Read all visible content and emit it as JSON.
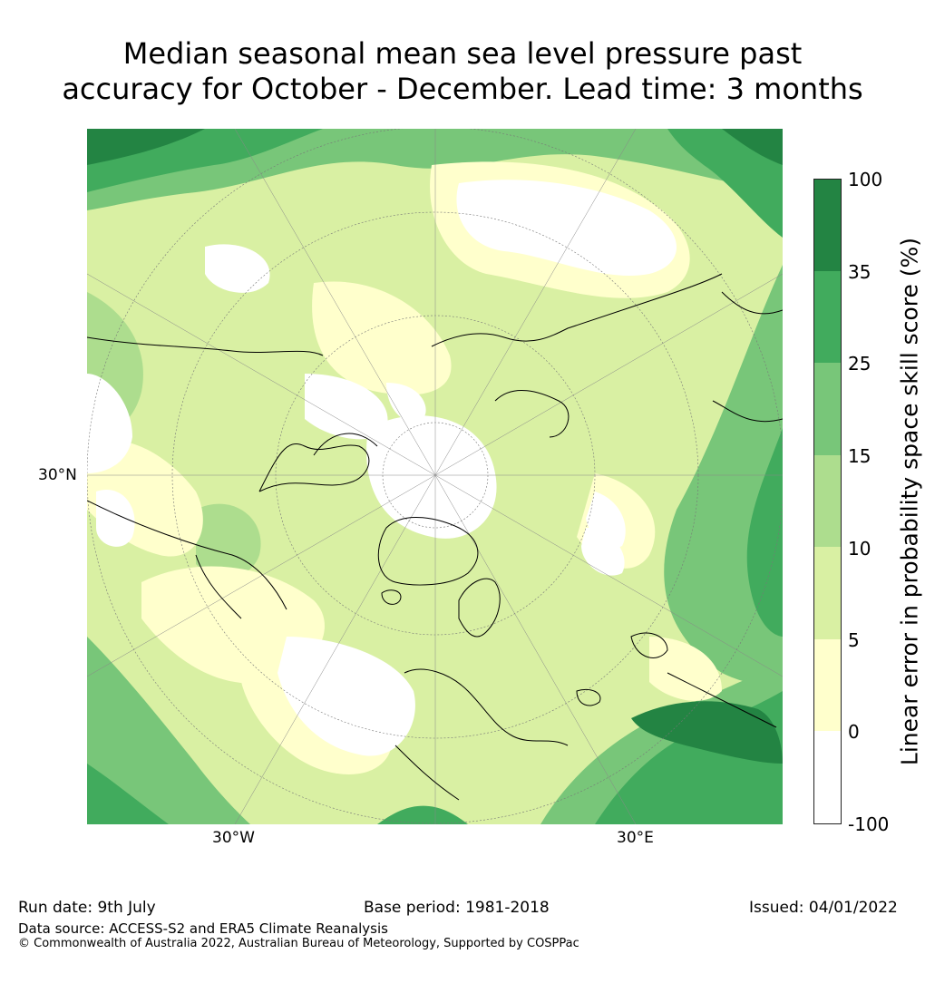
{
  "title": {
    "line1": "Median seasonal mean sea level pressure past",
    "line2": "accuracy for October - December. Lead time: 3 months"
  },
  "map": {
    "projection": "north-polar-stereographic",
    "lat_label": "30°N",
    "lon_labels": [
      "30°W",
      "30°E"
    ],
    "colors": {
      "ocean_bg": "#d6eb9f",
      "coast": "#000000",
      "grid": "#777777"
    }
  },
  "colorbar": {
    "label": "Linear error in probability space skill score (%)",
    "ticks": [
      "100",
      "35",
      "25",
      "15",
      "10",
      "5",
      "0",
      "-100"
    ],
    "bins": [
      {
        "from": -100,
        "to": 0,
        "color": "#ffffff"
      },
      {
        "from": 0,
        "to": 5,
        "color": "#ffffcc"
      },
      {
        "from": 5,
        "to": 10,
        "color": "#d9f0a3"
      },
      {
        "from": 10,
        "to": 15,
        "color": "#addd8e"
      },
      {
        "from": 15,
        "to": 25,
        "color": "#78c679"
      },
      {
        "from": 25,
        "to": 35,
        "color": "#41ab5d"
      },
      {
        "from": 35,
        "to": 100,
        "color": "#238443"
      }
    ]
  },
  "footer": {
    "run_date": "Run date: 9th July",
    "base_period": "Base period: 1981-2018",
    "issued": "Issued: 04/01/2022",
    "data_source": "Data source: ACCESS-S2 and ERA5 Climate Reanalysis",
    "copyright": "© Commonwealth of Australia 2022, Australian Bureau of Meteorology, Supported by COSPPac"
  }
}
